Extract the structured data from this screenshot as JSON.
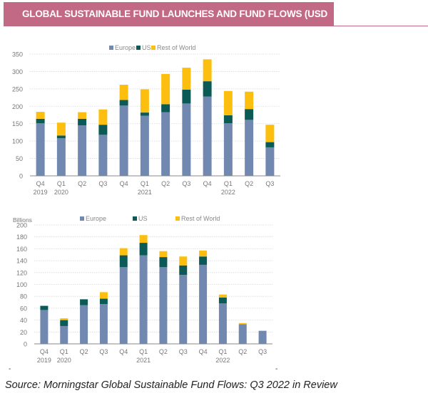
{
  "header": {
    "title": "GLOBAL SUSTAINABLE FUND LAUNCHES AND FUND FLOWS (USD BILLION)"
  },
  "colors": {
    "banner": "#c26a85",
    "Europe": "#7189b0",
    "US": "#0b5a55",
    "Rest of World": "#fdbf0f"
  },
  "chart_data": [
    {
      "type": "bar",
      "stacked": true,
      "categories": [
        "Q4 2019",
        "Q1 2020",
        "Q2",
        "Q3",
        "Q4",
        "Q1 2021",
        "Q2",
        "Q3",
        "Q4",
        "Q1 2022",
        "Q2",
        "Q3"
      ],
      "tick_labels": [
        [
          "Q4",
          "2019"
        ],
        [
          "Q1",
          "2020"
        ],
        [
          "Q2",
          ""
        ],
        [
          "Q3",
          ""
        ],
        [
          "Q4",
          ""
        ],
        [
          "Q1",
          "2021"
        ],
        [
          "Q2",
          ""
        ],
        [
          "Q3",
          ""
        ],
        [
          "Q4",
          ""
        ],
        [
          "Q1",
          "2022"
        ],
        [
          "Q2",
          ""
        ],
        [
          "Q3",
          ""
        ]
      ],
      "series": [
        {
          "name": "Europe",
          "values": [
            151,
            108,
            145,
            118,
            202,
            173,
            183,
            208,
            228,
            151,
            161,
            82
          ]
        },
        {
          "name": "US",
          "values": [
            13,
            8,
            19,
            29,
            16,
            9,
            23,
            40,
            44,
            23,
            31,
            15
          ]
        },
        {
          "name": "Rest of World",
          "values": [
            20,
            37,
            19,
            44,
            44,
            67,
            87,
            63,
            63,
            70,
            50,
            50
          ]
        }
      ],
      "ylim": [
        0,
        350
      ],
      "yticks": [
        0,
        50,
        100,
        150,
        200,
        250,
        300,
        350
      ],
      "ylabel": "",
      "grid": true,
      "legend": "top-center"
    },
    {
      "type": "bar",
      "stacked": true,
      "categories": [
        "Q4 2019",
        "Q1 2020",
        "Q2",
        "Q3",
        "Q4",
        "Q1 2021",
        "Q2",
        "Q3",
        "Q4",
        "Q1 2022",
        "Q2",
        "Q3"
      ],
      "tick_labels": [
        [
          "Q4",
          "2019"
        ],
        [
          "Q1",
          "2020"
        ],
        [
          "Q2",
          ""
        ],
        [
          "Q3",
          ""
        ],
        [
          "Q4",
          ""
        ],
        [
          "Q1",
          "2021"
        ],
        [
          "Q2",
          ""
        ],
        [
          "Q3",
          ""
        ],
        [
          "Q4",
          ""
        ],
        [
          "Q1",
          "2022"
        ],
        [
          "Q2",
          ""
        ],
        [
          "Q3",
          ""
        ]
      ],
      "series": [
        {
          "name": "Europe",
          "values": [
            57,
            30,
            65,
            67,
            129,
            149,
            129,
            116,
            133,
            68,
            33,
            22
          ]
        },
        {
          "name": "US",
          "values": [
            7,
            10,
            10,
            9,
            20,
            21,
            17,
            16,
            14,
            10,
            0,
            0
          ]
        },
        {
          "name": "Rest of World",
          "values": [
            0,
            3,
            0,
            11,
            12,
            13,
            10,
            15,
            10,
            5,
            2,
            0
          ]
        }
      ],
      "ylim": [
        0,
        200
      ],
      "yticks": [
        0,
        20,
        40,
        60,
        80,
        100,
        120,
        140,
        160,
        180,
        200
      ],
      "ylabel": "Billions",
      "grid": true,
      "legend": "top-center"
    }
  ],
  "footer": {
    "source": "Source: Morningstar Global Sustainable Fund Flows: Q3 2022 in Review",
    "dash": "-"
  }
}
